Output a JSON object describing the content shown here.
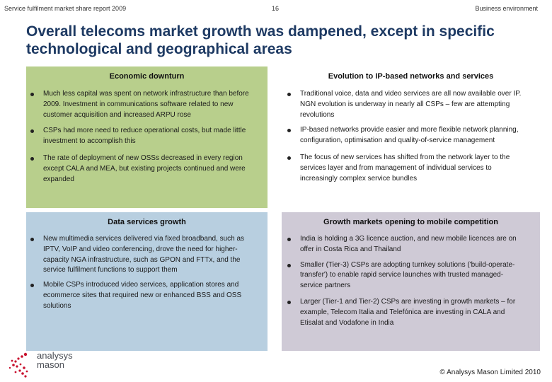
{
  "header": {
    "left": "Service fulfilment market share report 2009",
    "page_number": "16",
    "right": "Business environment"
  },
  "title": "Overall telecoms market growth was dampened, except in specific technological and geographical areas",
  "boxes": [
    {
      "title": "Economic downturn",
      "color": "#b8cf8c",
      "bullets": [
        "Much less capital was spent on network infrastructure than before 2009. Investment in communications software related to new customer acquisition and increased ARPU rose",
        "CSPs had more need to reduce operational costs, but made little investment to accomplish this",
        "The rate of deployment of new OSSs decreased in every region except CALA and MEA, but existing projects continued and were expanded"
      ]
    },
    {
      "title": "Evolution to IP-based networks and services",
      "color": "#ffffff",
      "bullets": [
        "Traditional voice, data and video services are all now available over IP. NGN evolution is underway in nearly all CSPs – few are attempting revolutions",
        "IP-based networks provide easier and more flexible network planning, configuration, optimisation and quality-of-service management",
        "The focus of new services has shifted from the network layer to the services layer and from management of individual services to increasingly complex service bundles"
      ]
    },
    {
      "title": "Data services growth",
      "color": "#b8cfe0",
      "bullets": [
        "New multimedia services delivered via fixed broadband, such as IPTV, VoIP and video conferencing, drove the need for higher-capacity NGA infrastructure, such as GPON and FTTx, and the service fulfilment functions to support them",
        "Mobile CSPs introduced video services, application stores and ecommerce sites that required new or enhanced BSS and OSS solutions"
      ]
    },
    {
      "title": "Growth markets opening to mobile competition",
      "color": "#cfcad6",
      "bullets": [
        "India is holding a 3G licence auction, and new mobile licences are on offer in Costa Rica and Thailand",
        "Smaller (Tier-3) CSPs are adopting turnkey solutions ('build-operate-transfer') to enable rapid service launches with trusted managed-service partners",
        "Larger (Tier-1 and Tier-2) CSPs are investing in growth markets – for example, Telecom Italia and Telefónica are investing in CALA and Etisalat and Vodafone in India"
      ]
    }
  ],
  "footer": {
    "logo_line1": "analysys",
    "logo_line2": "mason",
    "copyright": "© Analysys Mason Limited 2010",
    "logo_color": "#c8102e"
  }
}
